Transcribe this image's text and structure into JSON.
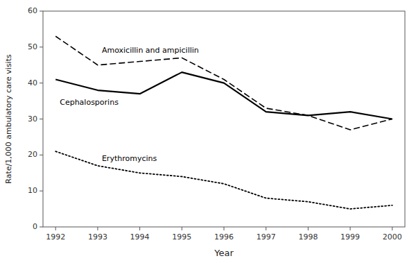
{
  "chart_data": {
    "type": "line",
    "x": [
      1992,
      1993,
      1994,
      1995,
      1996,
      1997,
      1998,
      1999,
      2000
    ],
    "series": [
      {
        "name": "Amoxicillin and ampicillin",
        "values": [
          53,
          45,
          46,
          47,
          41,
          33,
          31,
          27,
          30
        ],
        "line_style": "dashed"
      },
      {
        "name": "Cephalosporins",
        "values": [
          41,
          38,
          37,
          43,
          40,
          32,
          31,
          32,
          30
        ],
        "line_style": "solid"
      },
      {
        "name": "Erythromycins",
        "values": [
          21,
          17,
          15,
          14,
          12,
          8,
          7,
          5,
          6
        ],
        "line_style": "dotted"
      }
    ],
    "color": "#000000",
    "x_label": "Year",
    "y_label": "Rate/1,000 ambulatory care visits",
    "xlim": [
      1991.7,
      2000.3
    ],
    "xticks": [
      1992,
      1993,
      1994,
      1995,
      1996,
      1997,
      1998,
      1999,
      2000
    ],
    "ylim": [
      0,
      60
    ],
    "yticks": [
      0,
      10,
      20,
      30,
      40,
      50,
      60
    ],
    "grid": false
  }
}
